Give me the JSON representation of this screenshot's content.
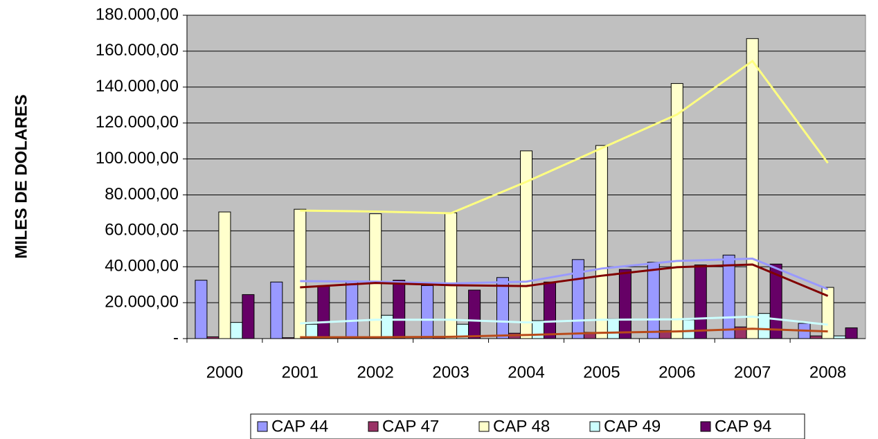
{
  "chart_data": {
    "type": "bar",
    "y_label": "MILES DE DOLARES",
    "categories": [
      "2000",
      "2001",
      "2002",
      "2003",
      "2004",
      "2005",
      "2006",
      "2007",
      "2008"
    ],
    "series": [
      {
        "name": "CAP 44",
        "color": "#9999ff",
        "trend_color": "#9999ff",
        "values": [
          32500,
          31500,
          32000,
          29500,
          34000,
          44000,
          42500,
          46500,
          8500
        ],
        "trend": [
          null,
          32000,
          31700,
          30700,
          31700,
          39000,
          43200,
          44500,
          27500
        ]
      },
      {
        "name": "CAP 47",
        "color": "#993366",
        "trend_color": "#b84a1a",
        "values": [
          1000,
          500,
          1000,
          1000,
          3000,
          3500,
          4500,
          6500,
          1500
        ],
        "trend": [
          null,
          750,
          750,
          1000,
          2000,
          3250,
          4000,
          5500,
          4000
        ]
      },
      {
        "name": "CAP 48",
        "color": "#ffffcc",
        "trend_color": "#ffff80",
        "values": [
          70500,
          72000,
          69500,
          70000,
          104500,
          107500,
          142000,
          167000,
          28500
        ],
        "trend": [
          null,
          71250,
          70750,
          69750,
          87250,
          106000,
          124750,
          154500,
          97750
        ]
      },
      {
        "name": "CAP 49",
        "color": "#ccffff",
        "trend_color": "#ccffff",
        "values": [
          9000,
          8000,
          13000,
          8000,
          10000,
          11000,
          10500,
          14000,
          1500
        ],
        "trend": [
          null,
          8500,
          10500,
          10500,
          9000,
          10500,
          10750,
          12250,
          7750
        ]
      },
      {
        "name": "CAP 94",
        "color": "#660066",
        "trend_color": "#800000",
        "values": [
          24500,
          29500,
          32500,
          27000,
          31500,
          38500,
          41000,
          41500,
          6000
        ],
        "trend": [
          null,
          28500,
          31000,
          29750,
          29250,
          35000,
          39750,
          41250,
          23750
        ]
      }
    ],
    "ylim": [
      0,
      180000
    ],
    "yticks": [
      {
        "value": 0,
        "label": "-"
      },
      {
        "value": 20000,
        "label": "20.000,00"
      },
      {
        "value": 40000,
        "label": "40.000,00"
      },
      {
        "value": 60000,
        "label": "60.000,00"
      },
      {
        "value": 80000,
        "label": "80.000,00"
      },
      {
        "value": 100000,
        "label": "100.000,00"
      },
      {
        "value": 120000,
        "label": "120.000,00"
      },
      {
        "value": 140000,
        "label": "140.000,00"
      },
      {
        "value": 160000,
        "label": "160.000,00"
      },
      {
        "value": 180000,
        "label": "180.000,00"
      }
    ],
    "grid": true,
    "plot_background": "#c0c0c0",
    "legend": "bottom"
  }
}
